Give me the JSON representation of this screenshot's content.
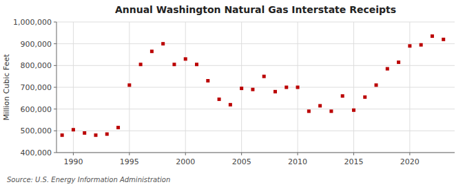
{
  "chart_data": {
    "type": "scatter",
    "title": "Annual Washington Natural Gas Interstate Receipts",
    "ylabel": "Million Cubic Feet",
    "source": "Source: U.S. Energy Information Administration",
    "color": "#bb0000",
    "marker": "square",
    "grid": true,
    "x": [
      1989,
      1990,
      1991,
      1992,
      1993,
      1994,
      1995,
      1996,
      1997,
      1998,
      1999,
      2000,
      2001,
      2002,
      2003,
      2004,
      2005,
      2006,
      2007,
      2008,
      2009,
      2010,
      2011,
      2012,
      2013,
      2014,
      2015,
      2016,
      2017,
      2018,
      2019,
      2020,
      2021,
      2022,
      2023
    ],
    "values": [
      480000,
      505000,
      490000,
      480000,
      485000,
      515000,
      710000,
      805000,
      865000,
      900000,
      805000,
      830000,
      805000,
      730000,
      645000,
      620000,
      695000,
      690000,
      750000,
      680000,
      700000,
      700000,
      590000,
      615000,
      590000,
      660000,
      595000,
      655000,
      710000,
      785000,
      815000,
      890000,
      895000,
      935000,
      920000
    ],
    "xlim": [
      1988.5,
      2024
    ],
    "xticks": [
      1990,
      1995,
      2000,
      2005,
      2010,
      2015,
      2020
    ],
    "ylim": [
      400000,
      1000000
    ],
    "yticks": [
      {
        "value": 400000,
        "label": "400,000"
      },
      {
        "value": 500000,
        "label": "500,000"
      },
      {
        "value": 600000,
        "label": "600,000"
      },
      {
        "value": 700000,
        "label": "700,000"
      },
      {
        "value": 800000,
        "label": "800,000"
      },
      {
        "value": 900000,
        "label": "900,000"
      },
      {
        "value": 1000000,
        "label": "1,000,000"
      }
    ]
  }
}
